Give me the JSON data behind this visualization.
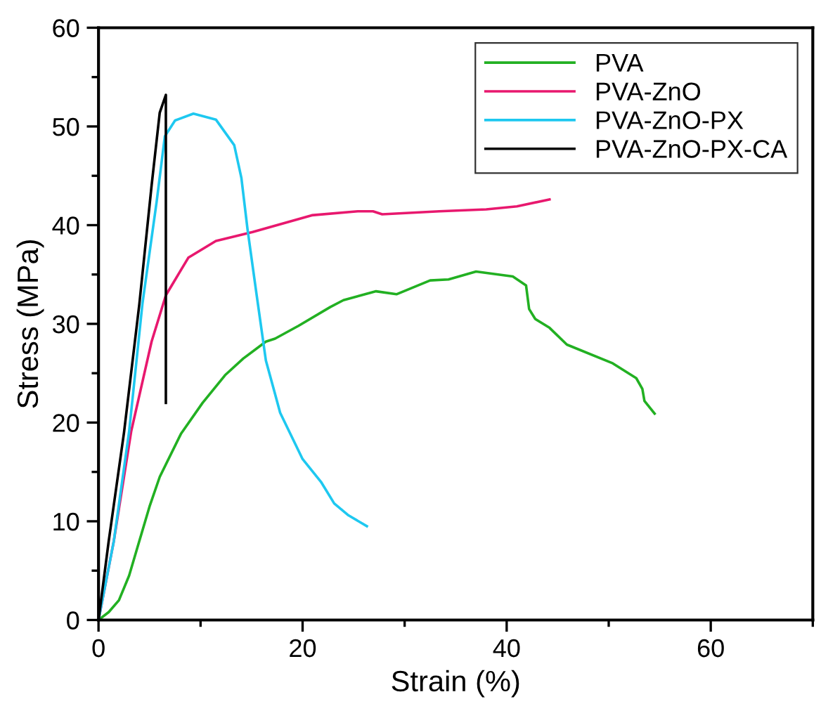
{
  "chart_data": {
    "type": "line",
    "xlabel": "Strain (%)",
    "ylabel": "Stress (MPa)",
    "xlim": [
      0,
      70
    ],
    "ylim": [
      0,
      60
    ],
    "xticks": [
      0,
      20,
      40,
      60
    ],
    "yticks": [
      0,
      10,
      20,
      30,
      40,
      50,
      60
    ],
    "grid": false,
    "legend": "top right",
    "marker": "none",
    "line_style": "solid",
    "series": [
      {
        "name": "PVA",
        "color": "#22b022",
        "x": [
          0,
          1,
          2,
          3,
          4,
          5,
          6,
          8.1,
          10.2,
          12.4,
          14.2,
          16.4,
          17.3,
          19.6,
          22.7,
          24.0,
          27.2,
          29.2,
          32.5,
          34.3,
          37.0,
          40.6,
          41.9,
          42.2,
          42.8,
          44.2,
          45.9,
          50.4,
          52.7,
          53.3,
          53.5,
          54.5
        ],
        "values": [
          0,
          0.8,
          2,
          4.5,
          8,
          11.5,
          14.5,
          18.9,
          22,
          24.8,
          26.5,
          28.2,
          28.5,
          29.8,
          31.7,
          32.4,
          33.3,
          33.0,
          34.4,
          34.5,
          35.3,
          34.8,
          33.9,
          31.5,
          30.5,
          29.6,
          27.9,
          26.0,
          24.5,
          23.4,
          22.2,
          20.9
        ]
      },
      {
        "name": "PVA-ZnO",
        "color": "#e8186e",
        "x": [
          0,
          1.5,
          3.2,
          5.2,
          6.6,
          8.8,
          11.5,
          15.1,
          20.9,
          25.4,
          26.9,
          27.8,
          33.4,
          38,
          41,
          44.2
        ],
        "values": [
          0,
          8,
          19.1,
          28.2,
          32.9,
          36.7,
          38.4,
          39.3,
          41,
          41.4,
          41.4,
          41.1,
          41.4,
          41.6,
          41.9,
          42.6
        ]
      },
      {
        "name": "PVA-ZnO-PX",
        "color": "#1ec8f0",
        "x": [
          0,
          1.5,
          3.0,
          4.3,
          5.7,
          6.5,
          7.5,
          9.3,
          11.5,
          13.3,
          14.0,
          14.6,
          15.5,
          16.4,
          17.3,
          17.8,
          20.0,
          21.8,
          23.1,
          24.5,
          26.3
        ],
        "values": [
          0,
          8,
          19.1,
          32,
          42.4,
          49,
          50.6,
          51.3,
          50.7,
          48.1,
          44.8,
          39.6,
          32.9,
          26.3,
          22.9,
          21,
          16.3,
          14,
          11.8,
          10.6,
          9.5
        ]
      },
      {
        "name": "PVA-ZnO-PX-CA",
        "color": "#000000",
        "x": [
          0,
          1,
          2.5,
          4,
          5.2,
          6.0,
          6.6,
          6.6
        ],
        "values": [
          0,
          8,
          19,
          32,
          44,
          51.4,
          53.2,
          22
        ]
      }
    ]
  }
}
